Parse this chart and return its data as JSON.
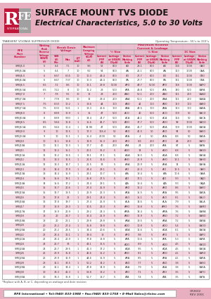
{
  "title1": "SURFACE MOUNT TVS DIODE",
  "title2": "Electrical Characteristics, 5.0 to 30 Volts",
  "pink_header_bg": "#e8afc0",
  "pink_light_bg": "#f5d5e0",
  "pink_medium_bg": "#ebbfcf",
  "white_bg": "#ffffff",
  "page_bg": "#ffffff",
  "header_text_dark": "#111111",
  "table_text": "#222222",
  "grid_color": "#bbbbbb",
  "rows": [
    [
      "SMBJ5.0",
      "5",
      "6.4",
      "7.1",
      "10",
      "9.6",
      "52",
      "800",
      "AO",
      "23.1",
      "800",
      "AO",
      "104",
      "1000",
      "OAO"
    ],
    [
      "SMBJ5.0A",
      "5",
      "6.4",
      "7",
      "10",
      "9.2",
      "54",
      "800",
      "AA",
      "25.1",
      "800",
      "AA",
      "113",
      "1000",
      "OAA"
    ],
    [
      "SMBJ6.0",
      "6",
      "6.67",
      "8.15",
      "10",
      "10.3",
      "43.4",
      "800",
      "BO",
      "27.7",
      "800",
      "BO",
      "121",
      "1000",
      "OBO"
    ],
    [
      "SMBJ6.0A",
      "6",
      "6.67",
      "7.37",
      "10",
      "10.3",
      "43.4",
      "800",
      "BA",
      "27.7",
      "800",
      "BA",
      "121",
      "1000",
      "OBA"
    ],
    [
      "SMBJ6.5",
      "6.5",
      "7.2",
      "8.6",
      "10",
      "12.1",
      "29.8",
      "5000",
      "APO",
      "49.7",
      "5000",
      "APO",
      "128",
      "1000",
      "OAPO"
    ],
    [
      "SMBJ6.5A",
      "6.5",
      "7.22",
      "8",
      "10",
      "11.2",
      "28",
      "500",
      "APA",
      "43.8",
      "500",
      "APA",
      "140",
      "500",
      "OAPA"
    ],
    [
      "SMBJ7.0",
      "7",
      "7.8",
      "9.1",
      "10",
      "12",
      "29",
      "200",
      "AAO",
      "50.1",
      "200",
      "AAO",
      "111",
      "200",
      "OAAO"
    ],
    [
      "SMBJ7.0A",
      "7",
      "7.78",
      "8.6",
      "10",
      "12",
      "29.4",
      "200",
      "AAA",
      "50.1",
      "200",
      "AAA",
      "111",
      "200",
      "OAAA"
    ],
    [
      "SMBJ7.5",
      "7.5",
      "8.33",
      "10.2",
      "1",
      "13.6",
      "44",
      "100",
      "ABO",
      "42",
      "100",
      "ABO",
      "113",
      "100",
      "OABO"
    ],
    [
      "SMBJ7.5A",
      "7.5",
      "8.33",
      "9.21",
      "1",
      "13.3",
      "26.6",
      "100",
      "ABA",
      "49.5",
      "100",
      "ABA",
      "113",
      "100",
      "OABA"
    ],
    [
      "SMBJ8.0",
      "8",
      "8.89",
      "10.9",
      "1",
      "15",
      "47",
      "500",
      "ACO",
      "40",
      "500",
      "ACO",
      "109",
      "50",
      "OACO"
    ],
    [
      "SMBJ8.0A",
      "8",
      "8.89",
      "9.83",
      "1",
      "14.4",
      "24.7",
      "500",
      "ACA",
      "44.1",
      "500",
      "ACA",
      "114",
      "50",
      "OACA"
    ],
    [
      "SMBJ8.5",
      "8.5",
      "9.44",
      "11.8",
      "1",
      "15.6",
      "45.7",
      "500",
      "ADO",
      "37.7",
      "500",
      "ADO",
      "99",
      "1000",
      "OADO"
    ],
    [
      "SMBJ8.5A",
      "8.5",
      "9.44",
      "10.4",
      "1",
      "14.96",
      "47",
      "500",
      "ADA",
      "41.7",
      "500",
      "ADA",
      "109",
      "1000",
      "OADA"
    ],
    [
      "SMBJ9.0",
      "9",
      "10",
      "12.5",
      "1",
      "17.3",
      "116.4",
      "50",
      "AEO",
      "41.5",
      "50",
      "AEO",
      "94",
      "50",
      "OAEO"
    ],
    [
      "SMBJ9.0A",
      "9",
      "10",
      "11.1",
      "1",
      "15.4",
      "2000",
      "50",
      "AEA",
      "4",
      "50",
      "AEA",
      "8.8",
      "50",
      "OAEA"
    ],
    [
      "SMBJ10",
      "10",
      "11.1",
      "13.8",
      "1",
      "19.9",
      "56.3",
      "200",
      "AFO",
      "8.8",
      "200",
      "AFO",
      "48",
      "200",
      "OAFO"
    ],
    [
      "SMBJ10A",
      "10",
      "11.1",
      "12.3",
      "1",
      "17.7",
      "40",
      "200",
      "AFA",
      "24",
      "200",
      "AFA",
      "87",
      "5",
      "OAFA"
    ],
    [
      "SMBJ11",
      "11",
      "12.2",
      "15.1",
      "1",
      "20.1",
      "35.2",
      "5",
      "AGO",
      "14",
      "5",
      "AGO",
      "6.8",
      "5",
      "OAGO"
    ],
    [
      "SMBJ11A",
      "11",
      "12.2",
      "13.5",
      "1",
      "19.1",
      "37.1",
      "5",
      "AGA",
      "14.5",
      "5",
      "AGA",
      "6.8",
      "5",
      "OAGA"
    ],
    [
      "SMBJ12",
      "12",
      "13.3",
      "16.5",
      "1",
      "22.5",
      "31.6",
      "5",
      "AHO",
      "21.9",
      "5",
      "AHO",
      "13.1",
      "5",
      "OAHO"
    ],
    [
      "SMBJ12A",
      "12",
      "13.3",
      "14.7",
      "1",
      "21.5",
      "33",
      "5",
      "AHA",
      "20.9",
      "5",
      "AHA",
      "14",
      "5",
      "OAHA"
    ],
    [
      "SMBJ13",
      "13",
      "14.4",
      "17.9",
      "1",
      "24.4",
      "29.1",
      "5",
      "AIO",
      "21.3",
      "5",
      "AIO",
      "12.5",
      "5",
      "OAIO"
    ],
    [
      "SMBJ13A",
      "13",
      "14.4",
      "15.9",
      "1",
      "23.1",
      "30.7",
      "5",
      "AIA",
      "18.4",
      "5",
      "AIA",
      "10.6",
      "5",
      "OAIA"
    ],
    [
      "SMBJ14",
      "14",
      "15.6",
      "19.1",
      "1",
      "25.8",
      "27.5",
      "5",
      "AJO",
      "17.1",
      "5",
      "AJO",
      "9.3",
      "5",
      "OAJO"
    ],
    [
      "SMBJ14A",
      "14",
      "15.6",
      "17.2",
      "1",
      "24.4",
      "29.1",
      "5",
      "AJA",
      "18.4",
      "5",
      "AJA",
      "9.3",
      "5",
      "OAJA"
    ],
    [
      "SMBJ15",
      "15",
      "16.7",
      "20.6",
      "1",
      "27.4",
      "25.9",
      "5",
      "AKO",
      "16.2",
      "5",
      "AKO",
      "8.6",
      "5",
      "OAKO"
    ],
    [
      "SMBJ15A",
      "15",
      "16.7",
      "18.5",
      "1",
      "26.9",
      "26.3",
      "5",
      "AKA",
      "15.5",
      "5",
      "AKA",
      "9.5",
      "5",
      "OAKA"
    ],
    [
      "SMBJ16",
      "16",
      "17.8",
      "22",
      "1",
      "29.1",
      "24.4",
      "5",
      "ALO",
      "15.1",
      "5",
      "ALO",
      "8.1",
      "5",
      "OALO"
    ],
    [
      "SMBJ16A",
      "16",
      "17.8",
      "19.7",
      "1",
      "27.4",
      "25.9",
      "5",
      "ALA",
      "14.6",
      "5",
      "ALA",
      "7.9",
      "5",
      "OALA"
    ],
    [
      "SMBJ17",
      "17",
      "18.9",
      "23.3",
      "1",
      "30.5",
      "23.3",
      "5",
      "AMO",
      "13.8",
      "5",
      "AMO",
      "7.6",
      "5",
      "OAMO"
    ],
    [
      "SMBJ17A",
      "17",
      "18.9",
      "20.9",
      "1",
      "29.2",
      "24.3",
      "5",
      "AMA",
      "14.4",
      "5",
      "AMA",
      "7.6",
      "5",
      "OAMA"
    ],
    [
      "SMBJ18",
      "18",
      "20",
      "24.7",
      "1",
      "32.4",
      "21.9",
      "5",
      "ANO",
      "12.9",
      "5",
      "ANO",
      "7.2",
      "5",
      "OANO"
    ],
    [
      "SMBJ18A",
      "18",
      "20",
      "22.1",
      "1",
      "29.8",
      "23.8",
      "5",
      "ANA",
      "13.5",
      "5",
      "ANA",
      "7.2",
      "5",
      "OANA"
    ],
    [
      "SMBJ20",
      "20",
      "22.2",
      "27.4",
      "1",
      "35.8",
      "19.8",
      "5",
      "AOO",
      "10.8",
      "5",
      "AOO",
      "5.4",
      "5",
      "OAOO"
    ],
    [
      "SMBJ20A",
      "20",
      "22.2",
      "24.5",
      "1",
      "34.4",
      "20.6",
      "5",
      "AOA",
      "11.6",
      "5",
      "AOA",
      "6.1",
      "5",
      "OAOA"
    ],
    [
      "SMBJ22",
      "22",
      "24.4",
      "30.1",
      "1",
      "39.4",
      "18",
      "5",
      "APO",
      "9.8",
      "5",
      "APO",
      "5",
      "5",
      "OAPO"
    ],
    [
      "SMBJ22A",
      "22",
      "24.4",
      "26.9",
      "1",
      "37.8",
      "18.8",
      "5",
      "APA",
      "10.6",
      "5",
      "APA",
      "5.3",
      "5",
      "OAPA"
    ],
    [
      "SMBJ24",
      "24",
      "26.7",
      "33",
      "1",
      "43.1",
      "16.5",
      "5",
      "AQO",
      "8.9",
      "5",
      "AQO",
      "4.5",
      "5",
      "OAQO"
    ],
    [
      "SMBJ24A",
      "24",
      "26.7",
      "29.5",
      "1",
      "41.3",
      "17.2",
      "5",
      "AQA",
      "9.5",
      "5",
      "AQA",
      "4.5",
      "5",
      "OAQA"
    ],
    [
      "SMBJ26",
      "26",
      "28.9",
      "35.8",
      "1",
      "46.6",
      "15.2",
      "5",
      "ARO",
      "8.1",
      "5",
      "ARO",
      "4.1",
      "5",
      "OARO"
    ],
    [
      "SMBJ26A",
      "26",
      "28.9",
      "31.9",
      "1",
      "44.6",
      "15.9",
      "5",
      "ARA",
      "8.5",
      "5",
      "ARA",
      "4.1",
      "5",
      "OARA"
    ],
    [
      "SMBJ28",
      "28",
      "31.1",
      "38.5",
      "1",
      "50.2",
      "14.2",
      "5",
      "ASO",
      "7.7",
      "5",
      "ASO",
      "3.8",
      "5",
      "OASO"
    ],
    [
      "SMBJ28A",
      "28",
      "31.1",
      "34.4",
      "1",
      "47.8",
      "14.9",
      "5",
      "ASA",
      "7.9",
      "5",
      "ASA",
      "3.8",
      "5",
      "OASA"
    ],
    [
      "SMBJ30",
      "30",
      "33.3",
      "41.3",
      "1",
      "53.8",
      "13.2",
      "5",
      "ATO",
      "7.1",
      "5",
      "ATO",
      "3.5",
      "5",
      "OATO"
    ],
    [
      "SMBJ30A",
      "30",
      "33.3",
      "36.8",
      "1",
      "51.7",
      "13.7",
      "5",
      "ATA",
      "7.4",
      "5",
      "ATA",
      "3.5",
      "5",
      "OATA"
    ]
  ],
  "footer_note": "*Replace with A, B, or C, depending on wattage and date revision",
  "footer_company": "RFE International • Tel:(940) 833-1988 • Fax:(940) 833-1758 • E-Mail Sales@rfeinc.com",
  "footer_code1": "CR3602",
  "footer_code2": "REV 2001"
}
